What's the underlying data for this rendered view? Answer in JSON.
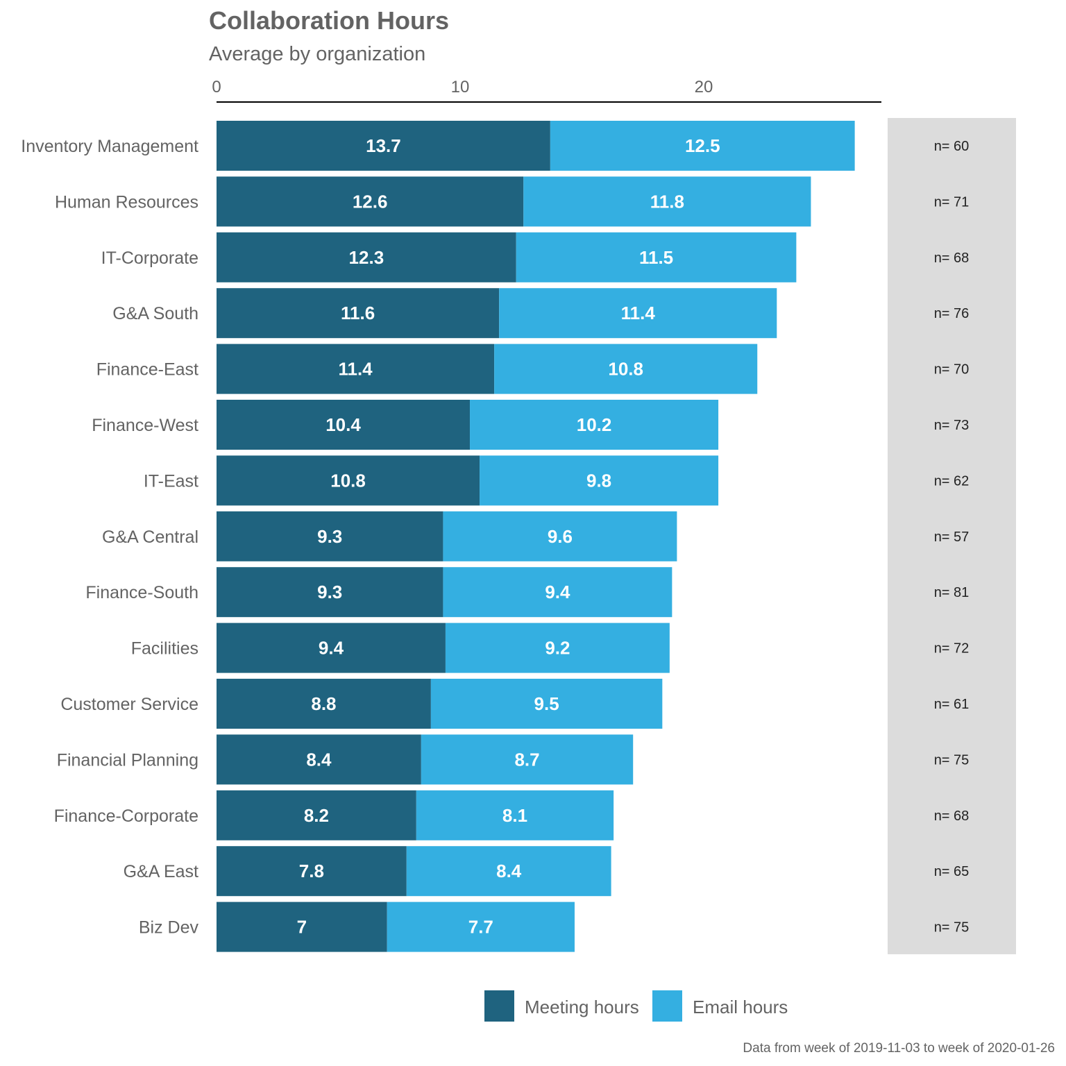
{
  "chart_data": {
    "type": "bar",
    "stacked": true,
    "orientation": "horizontal",
    "title": "Collaboration Hours",
    "subtitle": "Average by organization",
    "caption": "Data from week of 2019-11-03 to week of 2020-01-26",
    "x_ticks": [
      0,
      10,
      20
    ],
    "xlim": [
      0,
      27.3
    ],
    "x_axis_position": "top",
    "grid": false,
    "legend_position": "bottom",
    "categories": [
      "Inventory Management",
      "Human Resources",
      "IT-Corporate",
      "G&A South",
      "Finance-East",
      "Finance-West",
      "IT-East",
      "G&A Central",
      "Finance-South",
      "Facilities",
      "Customer Service",
      "Financial Planning",
      "Finance-Corporate",
      "G&A East",
      "Biz Dev"
    ],
    "series": [
      {
        "name": "Meeting hours",
        "color": "#1f637f",
        "values": [
          13.7,
          12.6,
          12.3,
          11.6,
          11.4,
          10.4,
          10.8,
          9.3,
          9.3,
          9.4,
          8.8,
          8.4,
          8.2,
          7.8,
          7
        ],
        "labels": [
          "13.7",
          "12.6",
          "12.3",
          "11.6",
          "11.4",
          "10.4",
          "10.8",
          "9.3",
          "9.3",
          "9.4",
          "8.8",
          "8.4",
          "8.2",
          "7.8",
          "7"
        ]
      },
      {
        "name": "Email hours",
        "color": "#34afe1",
        "values": [
          12.5,
          11.8,
          11.5,
          11.4,
          10.8,
          10.2,
          9.8,
          9.6,
          9.4,
          9.2,
          9.5,
          8.7,
          8.1,
          8.4,
          7.7
        ],
        "labels": [
          "12.5",
          "11.8",
          "11.5",
          "11.4",
          "10.8",
          "10.2",
          "9.8",
          "9.6",
          "9.4",
          "9.2",
          "9.5",
          "8.7",
          "8.1",
          "8.4",
          "7.7"
        ]
      }
    ],
    "n_labels": [
      "n= 60",
      "n= 71",
      "n= 68",
      "n= 76",
      "n= 70",
      "n= 73",
      "n= 62",
      "n= 57",
      "n= 81",
      "n= 72",
      "n= 61",
      "n= 75",
      "n= 68",
      "n= 65",
      "n= 75"
    ],
    "side_panel_color": "#dcdcdc"
  }
}
